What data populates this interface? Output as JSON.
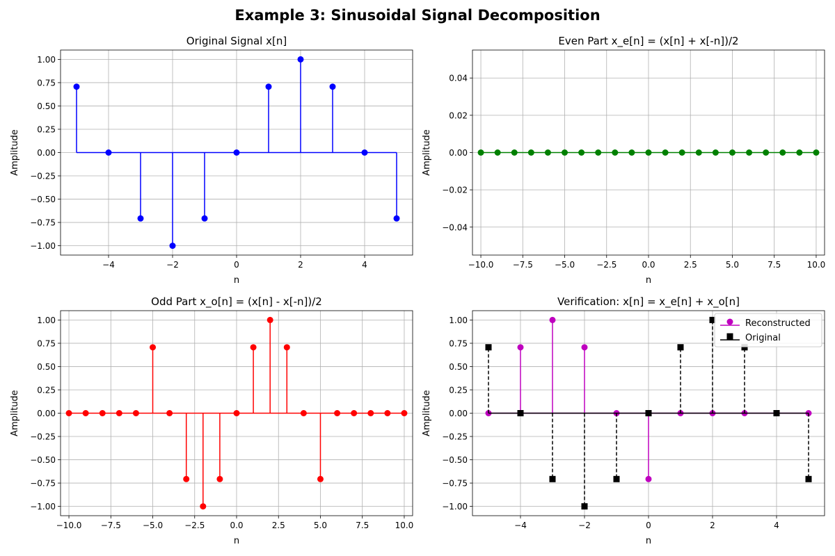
{
  "figure": {
    "suptitle": "Example 3: Sinusoidal Signal Decomposition"
  },
  "chart_data": [
    {
      "type": "stem",
      "title": "Original Signal x[n]",
      "xlabel": "n",
      "ylabel": "Amplitude",
      "xlim": [
        -5.5,
        5.5
      ],
      "ylim": [
        -1.1,
        1.1
      ],
      "xticks": [
        -4,
        -2,
        0,
        2,
        4
      ],
      "xtick_labels": [
        "−4",
        "−2",
        "0",
        "2",
        "4"
      ],
      "yticks": [
        -1.0,
        -0.75,
        -0.5,
        -0.25,
        0.0,
        0.25,
        0.5,
        0.75,
        1.0
      ],
      "ytick_labels": [
        "−1.00",
        "−0.75",
        "−0.50",
        "−0.25",
        "0.00",
        "0.25",
        "0.50",
        "0.75",
        "1.00"
      ],
      "grid": true,
      "series": [
        {
          "color": "#0000ff",
          "marker": "circle",
          "stem_style": "solid",
          "x": [
            -5,
            -4,
            -3,
            -2,
            -1,
            0,
            1,
            2,
            3,
            4,
            5
          ],
          "y": [
            0.707,
            0,
            -0.707,
            -1,
            -0.707,
            0,
            0.707,
            1,
            0.707,
            0,
            -0.707
          ]
        }
      ]
    },
    {
      "type": "stem",
      "title": "Even Part x_e[n] = (x[n] + x[-n])/2",
      "xlabel": "n",
      "ylabel": "Amplitude",
      "xlim": [
        -10.5,
        10.5
      ],
      "ylim": [
        -0.055,
        0.055
      ],
      "xticks": [
        -10,
        -7.5,
        -5,
        -2.5,
        0,
        2.5,
        5,
        7.5,
        10
      ],
      "xtick_labels": [
        "−10.0",
        "−7.5",
        "−5.0",
        "−2.5",
        "0.0",
        "2.5",
        "5.0",
        "7.5",
        "10.0"
      ],
      "yticks": [
        -0.04,
        -0.02,
        0.0,
        0.02,
        0.04
      ],
      "ytick_labels": [
        "−0.04",
        "−0.02",
        "0.00",
        "0.02",
        "0.04"
      ],
      "grid": true,
      "series": [
        {
          "color": "#008000",
          "marker": "circle",
          "stem_style": "solid",
          "x": [
            -10,
            -9,
            -8,
            -7,
            -6,
            -5,
            -4,
            -3,
            -2,
            -1,
            0,
            1,
            2,
            3,
            4,
            5,
            6,
            7,
            8,
            9,
            10
          ],
          "y": [
            0,
            0,
            0,
            0,
            0,
            0,
            0,
            0,
            0,
            0,
            0,
            0,
            0,
            0,
            0,
            0,
            0,
            0,
            0,
            0,
            0
          ]
        }
      ]
    },
    {
      "type": "stem",
      "title": "Odd Part x_o[n] = (x[n] - x[-n])/2",
      "xlabel": "n",
      "ylabel": "Amplitude",
      "xlim": [
        -10.5,
        10.5
      ],
      "ylim": [
        -1.1,
        1.1
      ],
      "xticks": [
        -10,
        -7.5,
        -5,
        -2.5,
        0,
        2.5,
        5,
        7.5,
        10
      ],
      "xtick_labels": [
        "−10.0",
        "−7.5",
        "−5.0",
        "−2.5",
        "0.0",
        "2.5",
        "5.0",
        "7.5",
        "10.0"
      ],
      "yticks": [
        -1.0,
        -0.75,
        -0.5,
        -0.25,
        0.0,
        0.25,
        0.5,
        0.75,
        1.0
      ],
      "ytick_labels": [
        "−1.00",
        "−0.75",
        "−0.50",
        "−0.25",
        "0.00",
        "0.25",
        "0.50",
        "0.75",
        "1.00"
      ],
      "grid": true,
      "series": [
        {
          "color": "#ff0000",
          "marker": "circle",
          "stem_style": "solid",
          "x": [
            -10,
            -9,
            -8,
            -7,
            -6,
            -5,
            -4,
            -3,
            -2,
            -1,
            0,
            1,
            2,
            3,
            4,
            5,
            6,
            7,
            8,
            9,
            10
          ],
          "y": [
            0,
            0,
            0,
            0,
            0,
            0.707,
            0,
            -0.707,
            -1,
            -0.707,
            0,
            0.707,
            1,
            0.707,
            0,
            -0.707,
            0,
            0,
            0,
            0,
            0
          ]
        }
      ]
    },
    {
      "type": "stem",
      "title": "Verification: x[n] = x_e[n] + x_o[n]",
      "xlabel": "n",
      "ylabel": "Amplitude",
      "xlim": [
        -5.5,
        5.5
      ],
      "ylim": [
        -1.1,
        1.1
      ],
      "xticks": [
        -4,
        -2,
        0,
        2,
        4
      ],
      "xtick_labels": [
        "−4",
        "−2",
        "0",
        "2",
        "4"
      ],
      "yticks": [
        -1.0,
        -0.75,
        -0.5,
        -0.25,
        0.0,
        0.25,
        0.5,
        0.75,
        1.0
      ],
      "ytick_labels": [
        "−1.00",
        "−0.75",
        "−0.50",
        "−0.25",
        "0.00",
        "0.25",
        "0.50",
        "0.75",
        "1.00"
      ],
      "grid": true,
      "legend": "top-right",
      "series": [
        {
          "name": "Reconstructed",
          "color": "#bf00bf",
          "marker": "circle",
          "stem_style": "solid",
          "x": [
            -5,
            -4,
            -3,
            -2,
            -1,
            0,
            1,
            2,
            3,
            4,
            5
          ],
          "y": [
            0,
            0.707,
            1,
            0.707,
            0,
            -0.707,
            0,
            0,
            0,
            0,
            0
          ]
        },
        {
          "name": "Original",
          "color": "#000000",
          "marker": "square",
          "stem_style": "dashed",
          "x": [
            -5,
            -4,
            -3,
            -2,
            -1,
            0,
            1,
            2,
            3,
            4,
            5
          ],
          "y": [
            0.707,
            0,
            -0.707,
            -1,
            -0.707,
            0,
            0.707,
            1,
            0.707,
            0,
            -0.707
          ]
        }
      ]
    }
  ]
}
